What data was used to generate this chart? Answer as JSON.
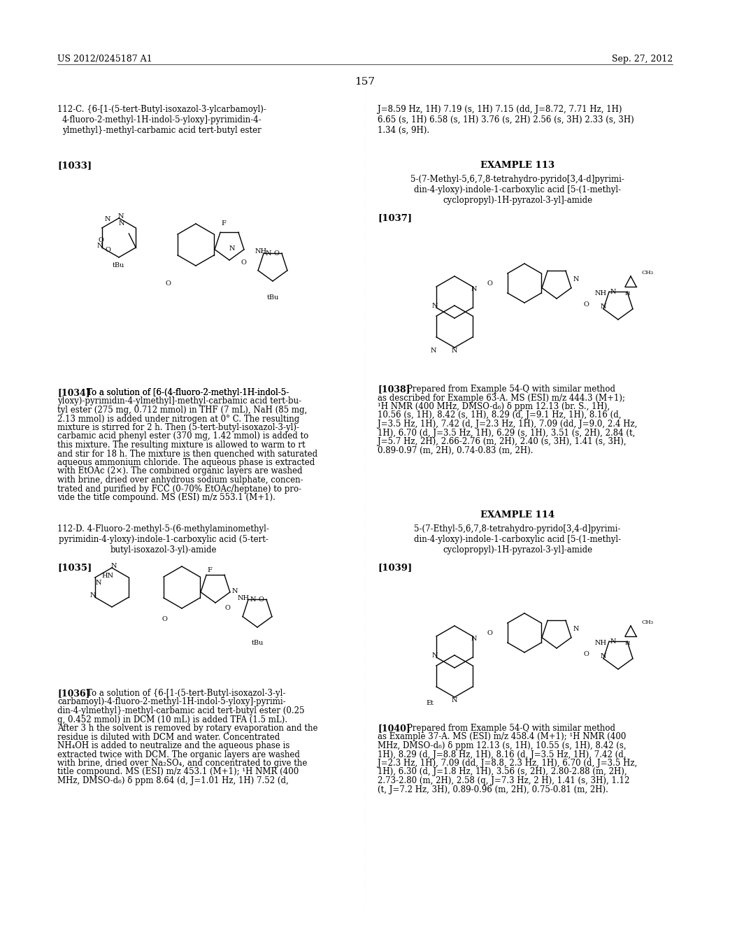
{
  "page_header_left": "US 2012/0245187 A1",
  "page_header_right": "Sep. 27, 2012",
  "page_number": "157",
  "background_color": "#ffffff",
  "text_color": "#000000",
  "font_size_body": 8.5,
  "font_size_header": 9,
  "font_size_example": 9.5,
  "font_size_tag": 9,
  "section_112C_title": "112-C. {6-[1-(5-tert-Butyl-isoxazol-3-ylcarbamoyl)-\n4-fluoro-2-methyl-1H-indol-5-yloxy]-pyrimidin-4-\nylmethyl}-methyl-carbamic acid tert-butyl ester",
  "tag_1033": "[1033]",
  "text_1034_label": "[1034]",
  "text_1034": "To a solution of [6-(4-fluoro-2-methyl-1H-indol-5-\nyloxy)-pyrimidin-4-ylmethyl]-methyl-carbamic acid tert-bu-\ntyl ester (275 mg, 0.712 mmol) in THF (7 mL), NaH (85 mg,\n2.13 mmol) is added under nitrogen at 0° C. The resulting\nmixture is stirred for 2 h. Then (5-tert-butyl-isoxazol-3-yl)-\ncarbamic acid phenyl ester (370 mg, 1.42 mmol) is added to\nthis mixture. The resulting mixture is allowed to warm to rt\nand stir for 18 h. The mixture is then quenched with saturated\naqueous ammonium chloride. The aqueous phase is extracted\nwith EtOAc (2×). The combined organic layers are washed\nwith brine, dried over anhydrous sodium sulphate, concen-\ntrated and purified by FCC (0-70% EtOAc/heptane) to pro-\nvide the title compound. MS (ESI) m/z 553.1 (M+1).",
  "section_112D_title": "112-D. 4-Fluoro-2-methyl-5-(6-methylaminomethyl-\npyrimidin-4-yloxy)-indole-1-carboxylic acid (5-tert-\nbutyl-isoxazol-3-yl)-amide",
  "tag_1035": "[1035]",
  "text_1036_label": "[1036]",
  "text_1036": "To a solution of {6-[1-(5-tert-Butyl-isoxazol-3-yl-\ncarbamoyl)-4-fluoro-2-methyl-1H-indol-5-yloxy]-pyrimi-\ndin-4-ylmethyl}-methyl-carbamic acid tert-butyl ester (0.25\ng, 0.452 mmol) in DCM (10 mL) is added TFA (1.5 mL).\nAfter 3 h the solvent is removed by rotary evaporation and the\nresidue is diluted with DCM and water. Concentrated\nNH₄OH is added to neutralize and the aqueous phase is\nextracted twice with DCM. The organic layers are washed\nwith brine, dried over Na₂SO₄, and concentrated to give the\ntitle compound. MS (ESI) m/z 453.1 (M+1); ¹H NMR (400\nMHz, DMSO-d₆) δ ppm 8.64 (d, J=1.01 Hz, 1H) 7.52 (d,",
  "right_col_top_text": "J=8.59 Hz, 1H) 7.19 (s, 1H) 7.15 (dd, J=8.72, 7.71 Hz, 1H)\n6.65 (s, 1H) 6.58 (s, 1H) 3.76 (s, 2H) 2.56 (s, 3H) 2.33 (s, 3H)\n1.34 (s, 9H).",
  "example_113_header": "EXAMPLE 113",
  "example_113_title": "5-(7-Methyl-5,6,7,8-tetrahydro-pyrido[3,4-d]pyrimi-\ndin-4-yloxy)-indole-1-carboxylic acid [5-(1-methyl-\ncyclopropyl)-1H-pyrazol-3-yl]-amide",
  "tag_1037": "[1037]",
  "text_1038_label": "[1038]",
  "text_1038": "Prepared from Example 54-Q with similar method\nas described for Example 63-A. MS (ESI) m/z 444.3 (M+1);\n¹H NMR (400 MHz, DMSO-d₆) δ ppm 12.13 (br. S., 1H),\n10.56 (s, 1H), 8.42 (s, 1H), 8.29 (d, J=9.1 Hz, 1H), 8.16 (d,\nJ=3.5 Hz, 1H), 7.42 (d, J=2.3 Hz, 1H), 7.09 (dd, J=9.0, 2.4 Hz,\n1H), 6.70 (d, J=3.5 Hz, 1H), 6.29 (s, 1H), 3.51 (s, 2H), 2.84 (t,\nJ=5.7 Hz, 2H), 2.66-2.76 (m, 2H), 2.40 (s, 3H), 1.41 (s, 3H),\n0.89-0.97 (m, 2H), 0.74-0.83 (m, 2H).",
  "example_114_header": "EXAMPLE 114",
  "example_114_title": "5-(7-Ethyl-5,6,7,8-tetrahydro-pyrido[3,4-d]pyrimi-\ndin-4-yloxy)-indole-1-carboxylic acid [5-(1-methyl-\ncyclopropyl)-1H-pyrazol-3-yl]-amide",
  "tag_1039": "[1039]",
  "text_1040_label": "[1040]",
  "text_1040": "Prepared from Example 54-Q with similar method\nas Example 37-A. MS (ESI) m/z 458.4 (M+1); ¹H NMR (400\nMHz, DMSO-d₆) δ ppm 12.13 (s, 1H), 10.55 (s, 1H), 8.42 (s,\n1H), 8.29 (d, J=8.8 Hz, 1H), 8.16 (d, J=3.5 Hz, 1H), 7.42 (d,\nJ=2.3 Hz, 1H), 7.09 (dd, J=8.8, 2.3 Hz, 1H), 6.70 (d, J=3.5 Hz,\n1H), 6.30 (d, J=1.8 Hz, 1H), 3.56 (s, 2H), 2.80-2.88 (m, 2H),\n2.73-2.80 (m, 2H), 2.58 (q, J=7.3 Hz, 2 H), 1.41 (s, 3H), 1.12\n(t, J=7.2 Hz, 3H), 0.89-0.96 (m, 2H), 0.75-0.81 (m, 2H)."
}
